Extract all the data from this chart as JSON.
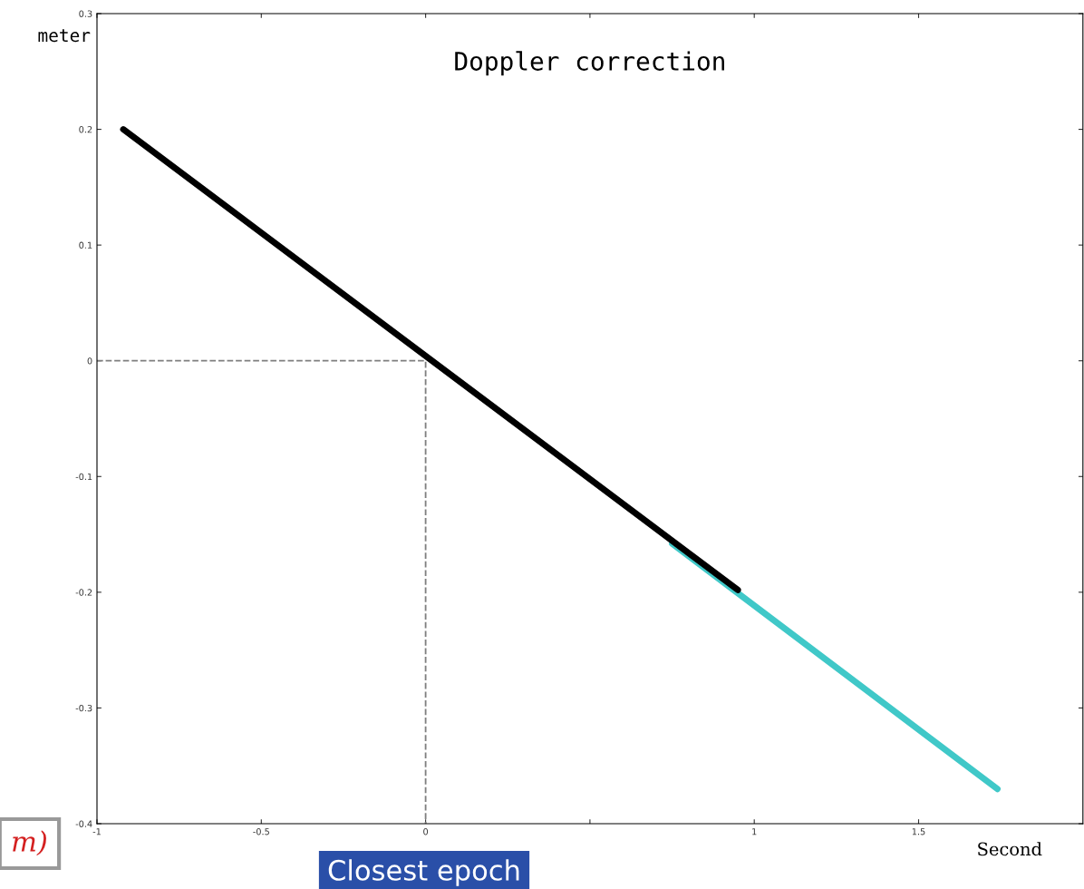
{
  "chart_data": {
    "type": "line",
    "title": "Doppler correction",
    "xlabel": "Second",
    "ylabel": "meter",
    "series": [
      {
        "color": "#7f7f7f",
        "line_style": "dashed",
        "x": [
          -1,
          0,
          0
        ],
        "values": [
          0,
          0,
          -0.4
        ]
      },
      {
        "color": "#40c8c8",
        "x": [
          0.75,
          1.74
        ],
        "values": [
          -0.158,
          -0.37
        ]
      },
      {
        "color": "#000000",
        "x": [
          -0.92,
          0.95
        ],
        "values": [
          0.2,
          -0.198
        ]
      }
    ],
    "xlim": [
      -1,
      2
    ],
    "ylim": [
      -0.4,
      0.3
    ],
    "xticks": [
      -1,
      -0.5,
      0,
      {
        "value": 0.5,
        "label": null
      },
      1,
      1.5
    ],
    "yticks": [
      -0.4,
      -0.3,
      -0.2,
      -0.1,
      0,
      0.1,
      0.2,
      0.3
    ],
    "grid": false,
    "legend": false,
    "annotations": [
      "Closest epoch",
      "m)"
    ]
  }
}
